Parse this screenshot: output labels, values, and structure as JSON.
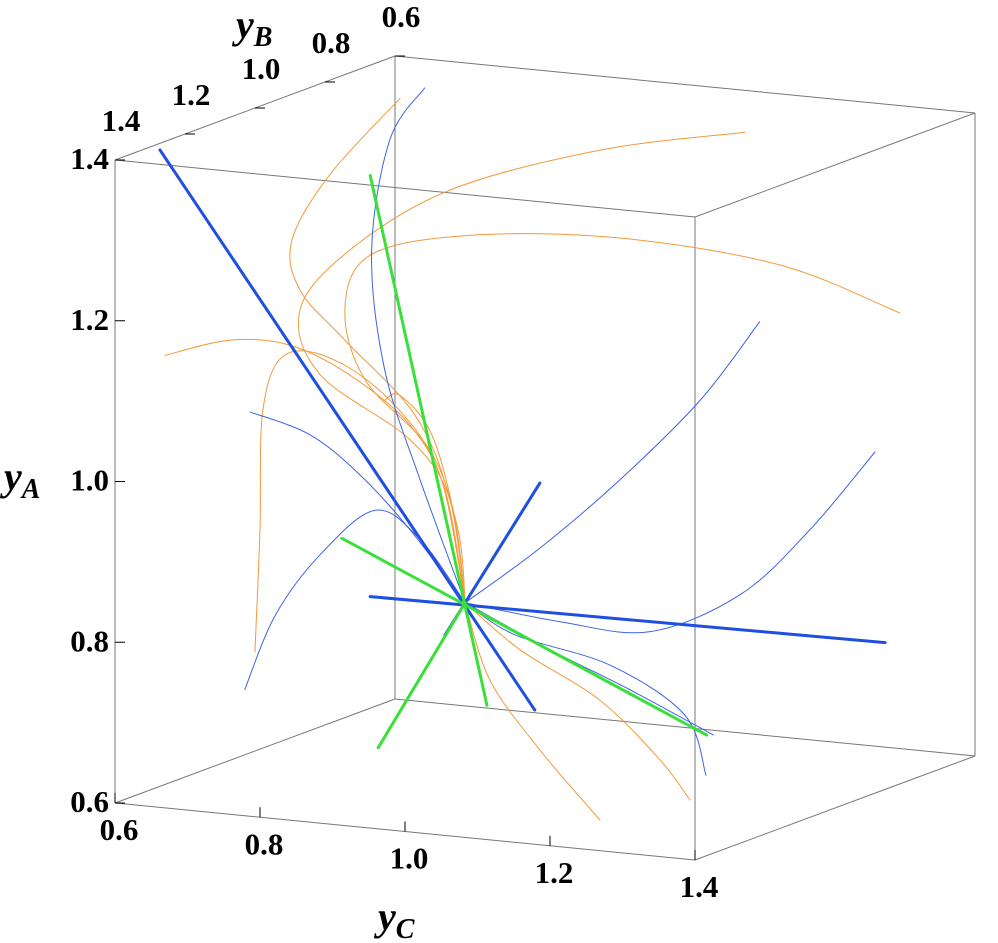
{
  "chart_data": {
    "type": "line3d",
    "xlabel": {
      "main": "y",
      "sub": "C"
    },
    "ylabel": {
      "main": "y",
      "sub": "B"
    },
    "zlabel": {
      "main": "y",
      "sub": "A"
    },
    "xlim": [
      0.6,
      1.4
    ],
    "ylim": [
      0.6,
      1.4
    ],
    "zlim": [
      0.6,
      1.4
    ],
    "xticks": [
      0.6,
      0.8,
      {
        "value": 1,
        "label": "1.0"
      },
      1.2,
      1.4
    ],
    "yticks": [
      0.6,
      0.8,
      {
        "value": 1,
        "label": "1.0"
      },
      1.2,
      1.4
    ],
    "zticks": [
      0.6,
      0.8,
      {
        "value": 1,
        "label": "1.0"
      },
      1.2,
      1.4
    ],
    "series": [
      {
        "color": "#f29a3c",
        "line_width": 1,
        "x": [
          1.083,
          0.883,
          0.676,
          0.731,
          0.662,
          0.883,
          1.007,
          1.062,
          1.083
        ],
        "y": [
          0.6,
          0.6,
          0.6,
          1.0,
          1.0,
          1.4,
          1.4,
          1.4,
          1.4
        ],
        "z": [
          1.348,
          1.308,
          1.24,
          1.235,
          1.154,
          1.158,
          1.088,
          1.018,
          0.892
        ]
      },
      {
        "color": "#f29a3c",
        "line_width": 1,
        "x": [
          1.296,
          1.131,
          0.91,
          0.703,
          0.759,
          0.724,
          0.945,
          1.034,
          1.073,
          1.083
        ],
        "y": [
          0.6,
          0.6,
          0.6,
          0.6,
          1.0,
          1.0,
          1.4,
          1.4,
          1.4,
          1.4
        ],
        "z": [
          1.142,
          1.187,
          1.201,
          1.186,
          1.231,
          1.16,
          1.157,
          1.078,
          0.982,
          0.892
        ]
      },
      {
        "color": "#f29a3c",
        "line_width": 1,
        "x": [
          0.607,
          0.703,
          0.651,
          0.662,
          0.917,
          1.014,
          1.062,
          1.083
        ],
        "y": [
          0.6,
          1.0,
          1.0,
          1.0,
          1.4,
          1.4,
          1.4,
          1.4
        ],
        "z": [
          1.348,
          1.326,
          1.24,
          1.179,
          1.204,
          1.119,
          1.018,
          0.892
        ]
      },
      {
        "color": "#f29a3c",
        "line_width": 1,
        "x": [
          0.669,
          0.759,
          0.841,
          0.924,
          1.007,
          1.055,
          1.083
        ],
        "y": [
          1.4,
          1.4,
          1.4,
          1.4,
          1.4,
          1.4,
          1.4
        ],
        "z": [
          1.163,
          1.19,
          1.191,
          1.161,
          1.106,
          1.03,
          0.892
        ]
      },
      {
        "color": "#f29a3c",
        "line_width": 1,
        "x": [
          0.793,
          0.8,
          0.804,
          0.834,
          0.903,
          0.986,
          1.048,
          1.083
        ],
        "y": [
          1.4,
          1.4,
          1.4,
          1.4,
          1.4,
          1.4,
          1.4,
          1.4
        ],
        "z": [
          0.805,
          0.957,
          1.107,
          1.178,
          1.178,
          1.129,
          1.048,
          0.892
        ]
      },
      {
        "color": "#f29a3c",
        "line_width": 1,
        "x": [
          1.083,
          1.117,
          1.186,
          1.269
        ],
        "y": [
          1.4,
          1.4,
          1.4,
          1.4
        ],
        "z": [
          0.892,
          0.799,
          0.718,
          0.638
        ]
      },
      {
        "color": "#f29a3c",
        "line_width": 1,
        "x": [
          1.083,
          1.159,
          1.269,
          1.352,
          1.393
        ],
        "y": [
          1.4,
          1.4,
          1.4,
          1.4,
          1.4
        ],
        "z": [
          0.892,
          0.84,
          0.787,
          0.72,
          0.674
        ]
      },
      {
        "color": "#f29a3c",
        "line_width": 1,
        "x": [
          0.972,
          0.993,
          1.037,
          1.069,
          1.083
        ],
        "y": [
          1.4,
          1.4,
          1.4,
          1.4,
          1.4
        ],
        "z": [
          1.134,
          1.142,
          1.097,
          0.994,
          0.892
        ]
      },
      {
        "color": "#3d63e3",
        "line_width": 1,
        "x": [
          0.641,
          0.786,
          0.954,
          0.972,
          1.021,
          1.083
        ],
        "y": [
          0.6,
          1.0,
          1.4,
          1.4,
          1.4,
          1.4
        ],
        "z": [
          1.364,
          1.377,
          1.319,
          1.172,
          1.039,
          0.892
        ]
      },
      {
        "color": "#3d63e3",
        "line_width": 1,
        "x": [
          1.103,
          1.021,
          0.91,
          1.186,
          1.083
        ],
        "y": [
          0.6,
          0.6,
          0.6,
          1.4,
          1.4
        ],
        "z": [
          1.114,
          1.009,
          0.9,
          0.969,
          0.892
        ]
      },
      {
        "color": "#3d63e3",
        "line_width": 1,
        "x": [
          1.262,
          1.172,
          1.076,
          0.952,
          1.214,
          1.083
        ],
        "y": [
          0.6,
          0.6,
          0.6,
          0.6,
          1.4,
          1.4
        ],
        "z": [
          0.966,
          0.861,
          0.772,
          0.715,
          0.88,
          0.892
        ]
      },
      {
        "color": "#3d63e3",
        "line_width": 1,
        "x": [
          0.779,
          0.821,
          0.883,
          0.959,
          1.021,
          1.083
        ],
        "y": [
          1.4,
          1.4,
          1.4,
          1.4,
          1.4,
          1.4
        ],
        "z": [
          0.757,
          0.853,
          0.934,
          0.996,
          0.965,
          0.892
        ]
      },
      {
        "color": "#3d63e3",
        "line_width": 1,
        "x": [
          0.786,
          0.869,
          0.938,
          1.007,
          1.083
        ],
        "y": [
          1.4,
          1.4,
          1.4,
          1.4,
          1.4
        ],
        "z": [
          1.103,
          1.082,
          1.038,
          0.976,
          0.892
        ]
      },
      {
        "color": "#3d63e3",
        "line_width": 1,
        "x": [
          1.083,
          1.2,
          1.31,
          1.232
        ],
        "y": [
          1.4,
          1.4,
          1.4,
          1.0
        ],
        "z": [
          0.892,
          0.844,
          0.804,
          0.676
        ]
      },
      {
        "color": "#3d63e3",
        "line_width": 1,
        "x": [
          1.083,
          1.152,
          1.283,
          1.386,
          1.222
        ],
        "y": [
          1.4,
          1.4,
          1.4,
          1.4,
          1.0
        ],
        "z": [
          0.892,
          0.858,
          0.832,
          0.779,
          0.625
        ]
      },
      {
        "color": "#1f4fe0",
        "line_width": 3,
        "x": [
          0.662,
          1.179
        ],
        "y": [
          1.4,
          1.4
        ],
        "z": [
          1.418,
          0.767
        ]
      },
      {
        "color": "#1f4fe0",
        "line_width": 3,
        "x": [
          0.952,
          1.276
        ],
        "y": [
          1.4,
          0.6
        ],
        "z": [
          0.888,
          0.73
        ]
      },
      {
        "color": "#1f4fe0",
        "line_width": 3,
        "x": [
          1.186,
          1.055
        ],
        "y": [
          1.4,
          1.4
        ],
        "z": [
          1.05,
          0.849
        ]
      },
      {
        "color": "#3ae03a",
        "line_width": 3,
        "x": [
          0.952,
          1.113
        ],
        "y": [
          1.4,
          1.4
        ],
        "z": [
          1.412,
          0.767
        ]
      },
      {
        "color": "#3ae03a",
        "line_width": 3,
        "x": [
          0.913,
          1.223
        ],
        "y": [
          1.4,
          1.0
        ],
        "z": [
          0.957,
          0.675
        ]
      },
      {
        "color": "#3ae03a",
        "line_width": 3,
        "x": [
          0.963,
          1.083
        ],
        "y": [
          1.4,
          1.4
        ],
        "z": [
          0.701,
          0.892
        ]
      }
    ]
  }
}
